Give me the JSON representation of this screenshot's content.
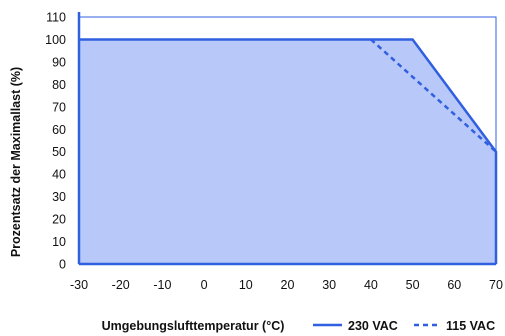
{
  "chart_data": {
    "type": "area",
    "title": "",
    "xlabel": "Umgebungslufttemperatur (°C)",
    "ylabel": "Prozentsatz der Maximallast (%)",
    "xlim": [
      -30,
      70
    ],
    "ylim": [
      0,
      110
    ],
    "x_ticks": [
      -30,
      -20,
      -10,
      0,
      10,
      20,
      30,
      40,
      50,
      60,
      70
    ],
    "y_ticks": [
      0,
      10,
      20,
      30,
      40,
      50,
      60,
      70,
      80,
      90,
      100,
      110
    ],
    "grid": false,
    "legend_position": "bottom-right",
    "series": [
      {
        "name": "230 VAC",
        "style": "solid",
        "filled": true,
        "x": [
          -30,
          50,
          70,
          70
        ],
        "y": [
          100,
          100,
          50,
          0
        ]
      },
      {
        "name": "115 VAC",
        "style": "dashed",
        "filled": false,
        "x": [
          40,
          70
        ],
        "y": [
          100,
          50
        ]
      }
    ],
    "colors": {
      "line": "#3060e0",
      "fill": "#b8c8f8",
      "frame": "#3060e0",
      "text": "#111111"
    }
  }
}
